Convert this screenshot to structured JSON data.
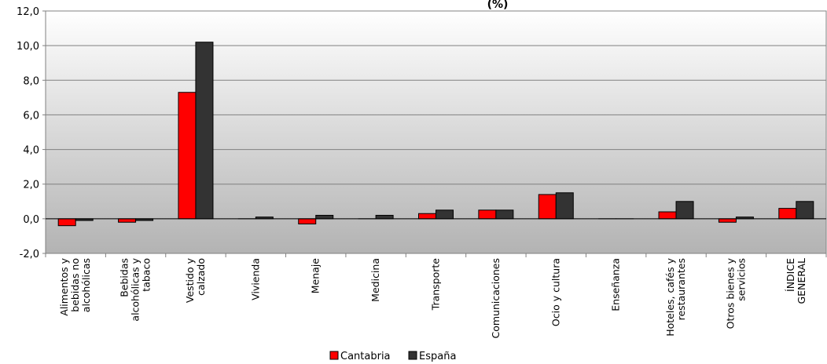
{
  "chart_data": {
    "type": "bar",
    "title": "(%)",
    "ylim": [
      -2,
      12
    ],
    "yticks": [
      "-2,0",
      "0,0",
      "2,0",
      "4,0",
      "6,0",
      "8,0",
      "10,0",
      "12,0"
    ],
    "ytick_values": [
      -2,
      0,
      2,
      4,
      6,
      8,
      10,
      12
    ],
    "categories": [
      [
        "Alimentos y",
        "bebidas no",
        "alcohólicas"
      ],
      [
        "Bebidas",
        "alcohólicas y",
        "tabaco"
      ],
      [
        "Vestido y",
        "calzado"
      ],
      [
        "Vivienda"
      ],
      [
        "Menaje"
      ],
      [
        "Medicina"
      ],
      [
        "Transporte"
      ],
      [
        "Comunicaciones"
      ],
      [
        "Ocio y cultura"
      ],
      [
        "Enseñanza"
      ],
      [
        "Hoteles, cafés y",
        "restaurantes"
      ],
      [
        "Otros bienes y",
        "servicios"
      ],
      [
        "ÍNDICE",
        "GENERAL"
      ]
    ],
    "series": [
      {
        "name": "Cantabria",
        "color": "#ff0000",
        "values": [
          -0.4,
          -0.2,
          7.3,
          0.0,
          -0.3,
          0.0,
          0.3,
          0.5,
          1.4,
          0.0,
          0.4,
          -0.2,
          0.6
        ]
      },
      {
        "name": "España",
        "color": "#333333",
        "values": [
          -0.1,
          -0.1,
          10.2,
          0.1,
          0.2,
          0.2,
          0.5,
          0.5,
          1.5,
          0.0,
          1.0,
          0.1,
          1.0
        ]
      }
    ],
    "grid": true,
    "legend_position": "bottom"
  }
}
